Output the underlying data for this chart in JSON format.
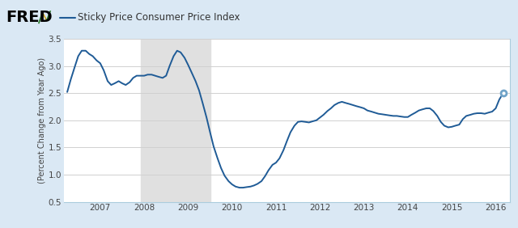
{
  "title": "Sticky Price Consumer Price Index",
  "ylabel": "(Percent Change from Year Ago)",
  "background_color": "#dae8f4",
  "plot_bg_color": "#ffffff",
  "recession_color": "#e0e0e0",
  "line_color": "#1f5b96",
  "line_width": 1.4,
  "ylim": [
    0.5,
    3.5
  ],
  "yticks": [
    0.5,
    1.0,
    1.5,
    2.0,
    2.5,
    3.0,
    3.5
  ],
  "recession_start": 2007.917,
  "recession_end": 2009.5,
  "dot_color": "#6fa3c8",
  "dates": [
    2006.25,
    2006.33,
    2006.42,
    2006.5,
    2006.58,
    2006.67,
    2006.75,
    2006.83,
    2006.92,
    2007.0,
    2007.08,
    2007.17,
    2007.25,
    2007.33,
    2007.42,
    2007.5,
    2007.58,
    2007.67,
    2007.75,
    2007.83,
    2007.92,
    2008.0,
    2008.08,
    2008.17,
    2008.25,
    2008.33,
    2008.42,
    2008.5,
    2008.58,
    2008.67,
    2008.75,
    2008.83,
    2008.92,
    2009.0,
    2009.08,
    2009.17,
    2009.25,
    2009.33,
    2009.42,
    2009.5,
    2009.58,
    2009.67,
    2009.75,
    2009.83,
    2009.92,
    2010.0,
    2010.08,
    2010.17,
    2010.25,
    2010.33,
    2010.42,
    2010.5,
    2010.58,
    2010.67,
    2010.75,
    2010.83,
    2010.92,
    2011.0,
    2011.08,
    2011.17,
    2011.25,
    2011.33,
    2011.42,
    2011.5,
    2011.58,
    2011.67,
    2011.75,
    2011.83,
    2011.92,
    2012.0,
    2012.08,
    2012.17,
    2012.25,
    2012.33,
    2012.42,
    2012.5,
    2012.58,
    2012.67,
    2012.75,
    2012.83,
    2012.92,
    2013.0,
    2013.08,
    2013.17,
    2013.25,
    2013.33,
    2013.42,
    2013.5,
    2013.58,
    2013.67,
    2013.75,
    2013.83,
    2013.92,
    2014.0,
    2014.08,
    2014.17,
    2014.25,
    2014.33,
    2014.42,
    2014.5,
    2014.58,
    2014.67,
    2014.75,
    2014.83,
    2014.92,
    2015.0,
    2015.08,
    2015.17,
    2015.25,
    2015.33,
    2015.42,
    2015.5,
    2015.58,
    2015.67,
    2015.75,
    2015.83,
    2015.92,
    2016.0,
    2016.08,
    2016.17
  ],
  "values": [
    2.52,
    2.75,
    2.98,
    3.18,
    3.28,
    3.28,
    3.22,
    3.18,
    3.1,
    3.05,
    2.92,
    2.72,
    2.65,
    2.68,
    2.72,
    2.68,
    2.65,
    2.7,
    2.78,
    2.82,
    2.82,
    2.82,
    2.84,
    2.84,
    2.82,
    2.8,
    2.78,
    2.82,
    3.0,
    3.18,
    3.28,
    3.25,
    3.15,
    3.02,
    2.88,
    2.72,
    2.55,
    2.32,
    2.05,
    1.78,
    1.52,
    1.3,
    1.12,
    0.98,
    0.88,
    0.82,
    0.78,
    0.76,
    0.76,
    0.77,
    0.78,
    0.8,
    0.83,
    0.88,
    0.97,
    1.08,
    1.18,
    1.22,
    1.3,
    1.45,
    1.62,
    1.78,
    1.9,
    1.97,
    1.98,
    1.97,
    1.96,
    1.98,
    2.0,
    2.05,
    2.1,
    2.17,
    2.22,
    2.28,
    2.32,
    2.34,
    2.32,
    2.3,
    2.28,
    2.26,
    2.24,
    2.22,
    2.18,
    2.16,
    2.14,
    2.12,
    2.11,
    2.1,
    2.09,
    2.08,
    2.08,
    2.07,
    2.06,
    2.06,
    2.1,
    2.14,
    2.18,
    2.2,
    2.22,
    2.22,
    2.17,
    2.08,
    1.97,
    1.9,
    1.87,
    1.88,
    1.9,
    1.92,
    2.02,
    2.08,
    2.1,
    2.12,
    2.13,
    2.13,
    2.12,
    2.14,
    2.16,
    2.22,
    2.38,
    2.5
  ],
  "xticks": [
    2007,
    2008,
    2009,
    2010,
    2011,
    2012,
    2013,
    2014,
    2015,
    2016
  ],
  "xlim": [
    2006.17,
    2016.33
  ],
  "fred_text": "FRED",
  "header_bg": "#dae8f4",
  "legend_line_color": "#1f5b96",
  "fred_icon_colors": [
    "#3a9a3a",
    "#e8c840",
    "#c83228"
  ]
}
